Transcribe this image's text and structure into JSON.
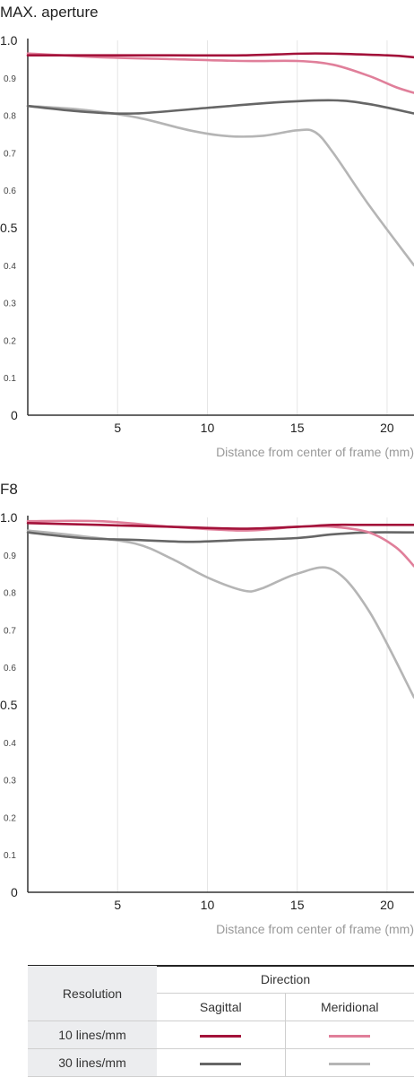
{
  "chart_data": [
    {
      "type": "line",
      "title": "MAX. aperture",
      "xlabel": "Distance from center of frame (mm)",
      "ylabel": "",
      "xlim": [
        0,
        21.5
      ],
      "ylim": [
        0,
        1.0
      ],
      "x_ticks": [
        "5",
        "10",
        "15",
        "20"
      ],
      "y_ticks_major": [
        "1.0",
        "0.5",
        "0"
      ],
      "y_ticks_minor": [
        "0.9",
        "0.8",
        "0.7",
        "0.6",
        "0.4",
        "0.3",
        "0.2",
        "0.1"
      ],
      "grid": "vertical",
      "series": [
        {
          "direction": "Sagittal",
          "resolution": "10 lines/mm",
          "color": "#a3123a",
          "x": [
            0,
            4,
            8,
            12,
            16,
            20,
            21.5
          ],
          "y": [
            0.96,
            0.96,
            0.96,
            0.96,
            0.965,
            0.96,
            0.955
          ]
        },
        {
          "direction": "Meridional",
          "resolution": "10 lines/mm",
          "color": "#e07f9a",
          "x": [
            0,
            4,
            8,
            12,
            15,
            17,
            19,
            20.5,
            21.5
          ],
          "y": [
            0.965,
            0.955,
            0.95,
            0.945,
            0.945,
            0.935,
            0.905,
            0.875,
            0.86
          ]
        },
        {
          "direction": "Sagittal",
          "resolution": "30 lines/mm",
          "color": "#666666",
          "x": [
            0,
            3,
            6,
            10,
            14,
            17,
            19,
            21.5
          ],
          "y": [
            0.825,
            0.81,
            0.805,
            0.82,
            0.835,
            0.84,
            0.83,
            0.805
          ]
        },
        {
          "direction": "Meridional",
          "resolution": "30 lines/mm",
          "color": "#b5b5b5",
          "x": [
            0,
            3,
            6,
            9,
            11,
            13,
            15,
            16,
            17,
            19,
            21.5
          ],
          "y": [
            0.825,
            0.815,
            0.795,
            0.76,
            0.745,
            0.745,
            0.76,
            0.755,
            0.7,
            0.56,
            0.4
          ]
        }
      ]
    },
    {
      "type": "line",
      "title": "F8",
      "xlabel": "Distance from center of frame (mm)",
      "ylabel": "",
      "xlim": [
        0,
        21.5
      ],
      "ylim": [
        0,
        1.0
      ],
      "x_ticks": [
        "5",
        "10",
        "15",
        "20"
      ],
      "y_ticks_major": [
        "1.0",
        "0.5",
        "0"
      ],
      "y_ticks_minor": [
        "0.9",
        "0.8",
        "0.7",
        "0.6",
        "0.4",
        "0.3",
        "0.2",
        "0.1"
      ],
      "grid": "vertical",
      "series": [
        {
          "direction": "Sagittal",
          "resolution": "10 lines/mm",
          "color": "#a3123a",
          "x": [
            0,
            4,
            8,
            12,
            15,
            17,
            19,
            21.5
          ],
          "y": [
            0.985,
            0.98,
            0.975,
            0.97,
            0.975,
            0.98,
            0.98,
            0.98
          ]
        },
        {
          "direction": "Meridional",
          "resolution": "10 lines/mm",
          "color": "#e07f9a",
          "x": [
            0,
            4,
            8,
            12,
            15,
            17,
            19,
            20.5,
            21.5
          ],
          "y": [
            0.99,
            0.99,
            0.975,
            0.965,
            0.975,
            0.975,
            0.96,
            0.92,
            0.87
          ]
        },
        {
          "direction": "Sagittal",
          "resolution": "30 lines/mm",
          "color": "#666666",
          "x": [
            0,
            3,
            6,
            9,
            12,
            15,
            17,
            19,
            21.5
          ],
          "y": [
            0.96,
            0.945,
            0.94,
            0.935,
            0.94,
            0.945,
            0.955,
            0.96,
            0.96
          ]
        },
        {
          "direction": "Meridional",
          "resolution": "30 lines/mm",
          "color": "#b5b5b5",
          "x": [
            0,
            3,
            6,
            8,
            10,
            12,
            13,
            15,
            17,
            19,
            21.5
          ],
          "y": [
            0.965,
            0.95,
            0.93,
            0.89,
            0.84,
            0.805,
            0.81,
            0.85,
            0.86,
            0.75,
            0.52
          ]
        }
      ]
    }
  ],
  "legend": {
    "resolution_header": "Resolution",
    "direction_header": "Direction",
    "sagittal_header": "Sagittal",
    "meridional_header": "Meridional",
    "rows": [
      {
        "label": "10 lines/mm",
        "sagittal_color": "#a3123a",
        "meridional_color": "#e07f9a"
      },
      {
        "label": "30 lines/mm",
        "sagittal_color": "#666666",
        "meridional_color": "#b5b5b5"
      }
    ]
  }
}
